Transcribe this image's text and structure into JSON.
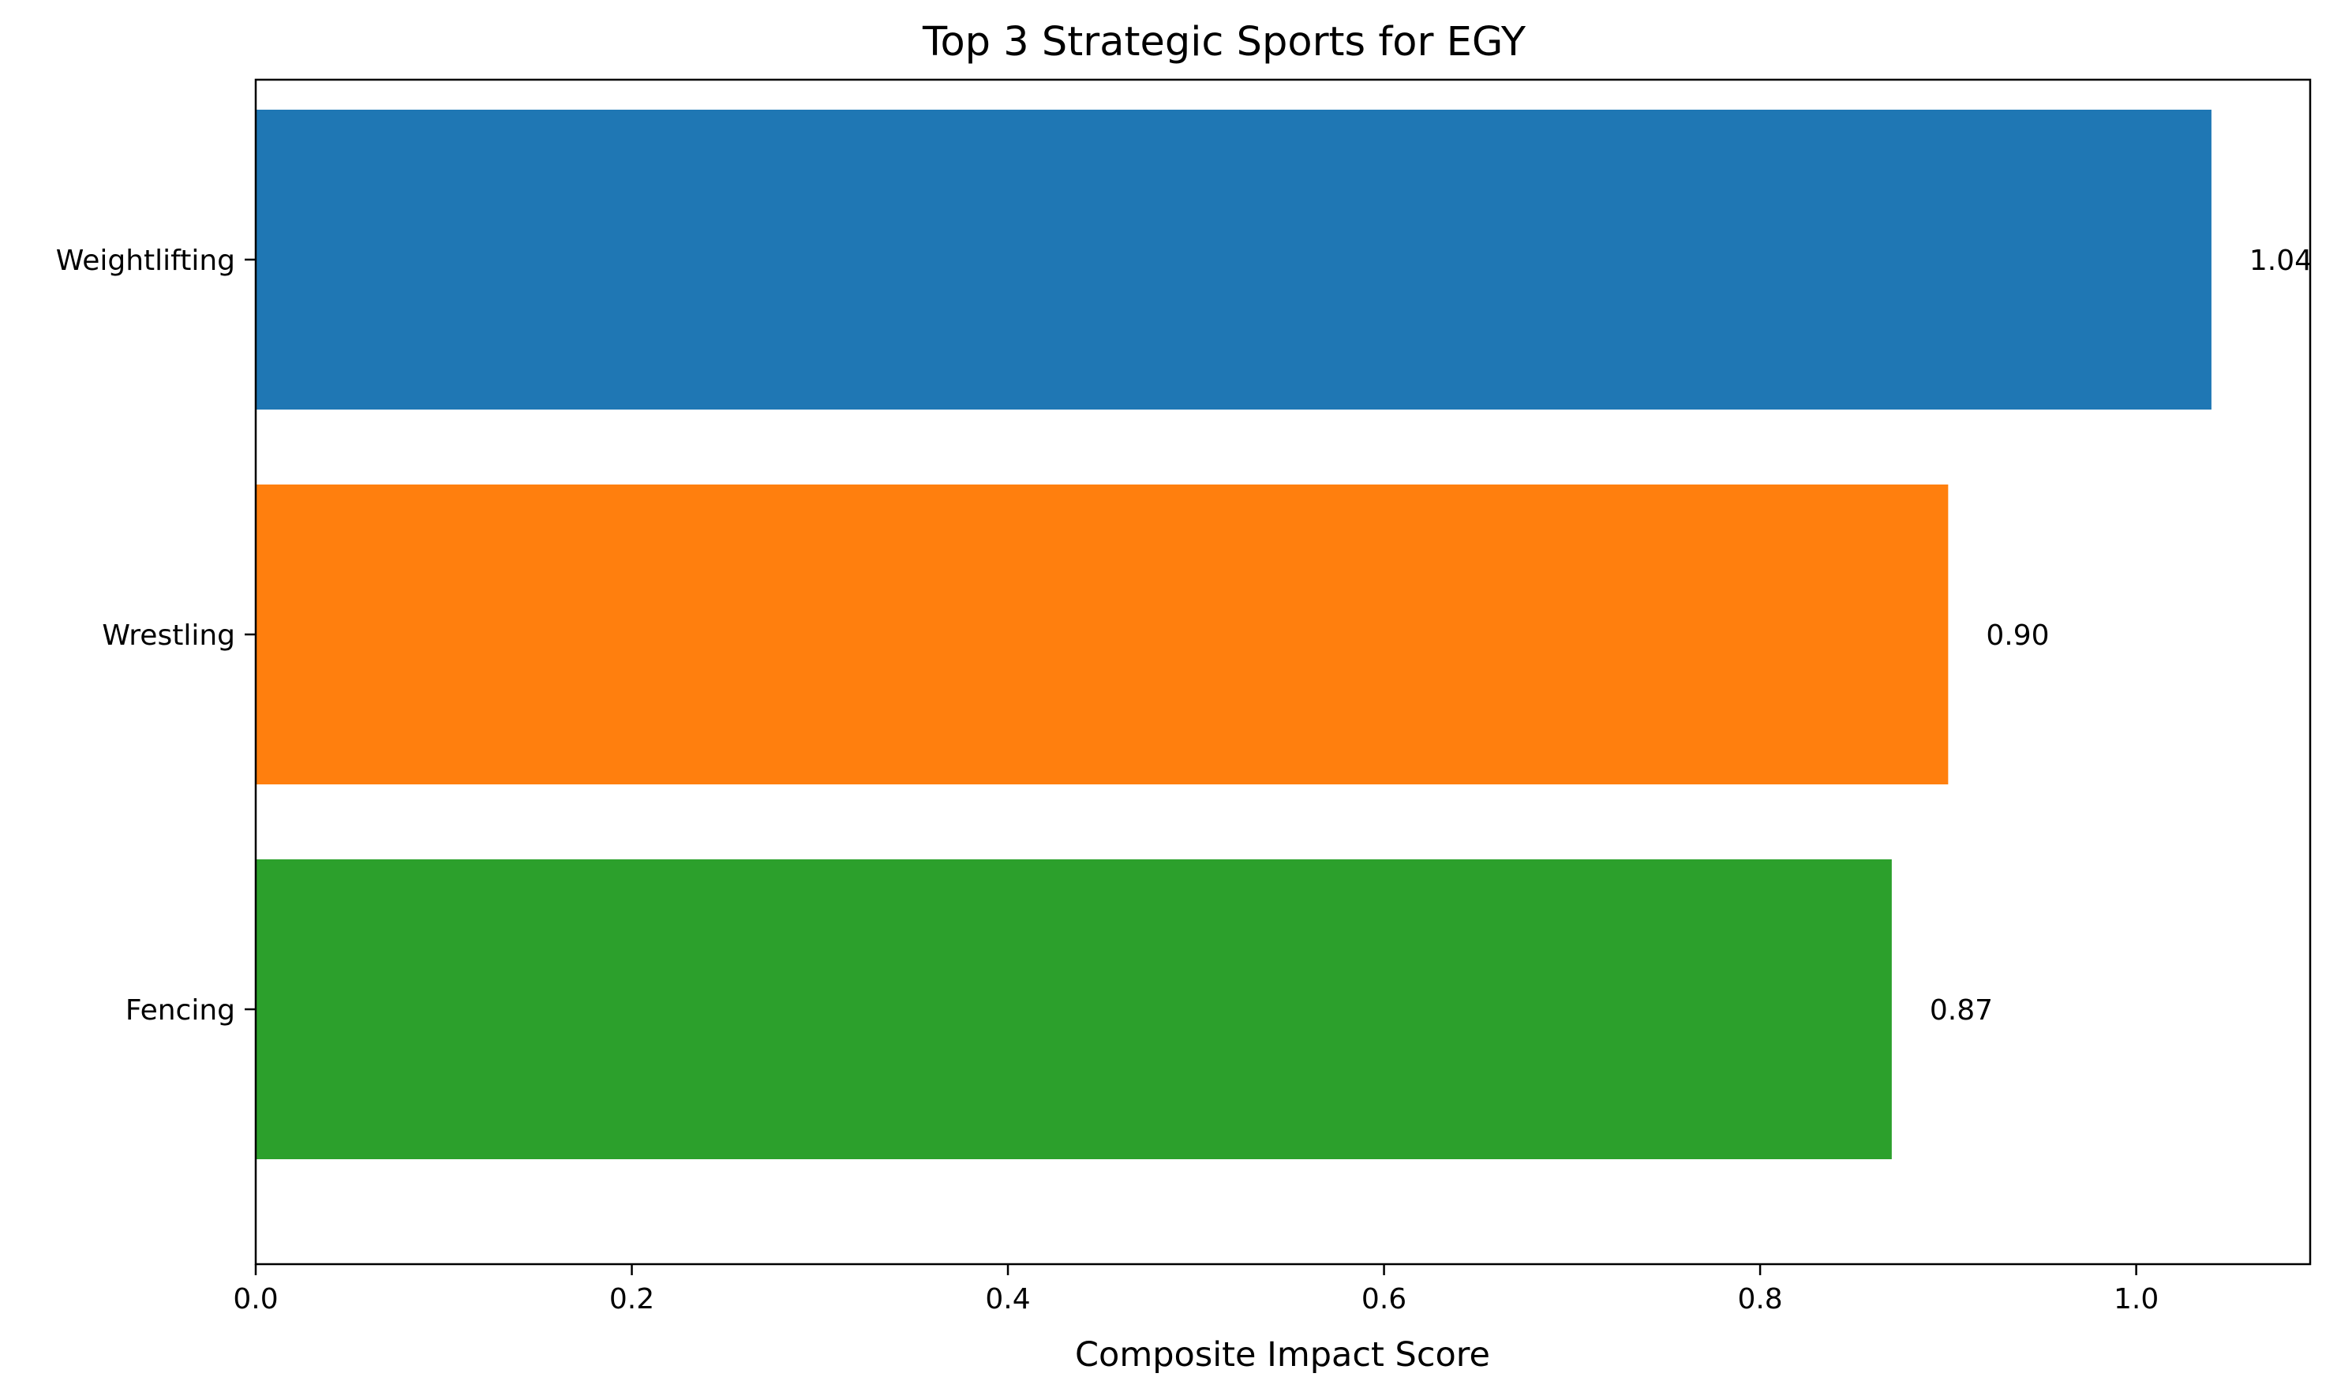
{
  "chart_data": {
    "type": "bar",
    "orientation": "horizontal",
    "title": "Top 3 Strategic Sports for EGY",
    "xlabel": "Composite Impact Score",
    "ylabel": "",
    "categories": [
      "Weightlifting",
      "Wrestling",
      "Fencing"
    ],
    "values": [
      1.04,
      0.9,
      0.87
    ],
    "value_labels": [
      "1.04",
      "0.90",
      "0.87"
    ],
    "colors": [
      "#1f77b4",
      "#ff7f0e",
      "#2ca02c"
    ],
    "xlim": [
      0,
      1.0925
    ],
    "xticks": [
      0.0,
      0.2,
      0.4,
      0.6,
      0.8,
      1.0
    ],
    "xtick_labels": [
      "0.0",
      "0.2",
      "0.4",
      "0.6",
      "0.8",
      "1.0"
    ],
    "grid": false,
    "legend": "none"
  }
}
